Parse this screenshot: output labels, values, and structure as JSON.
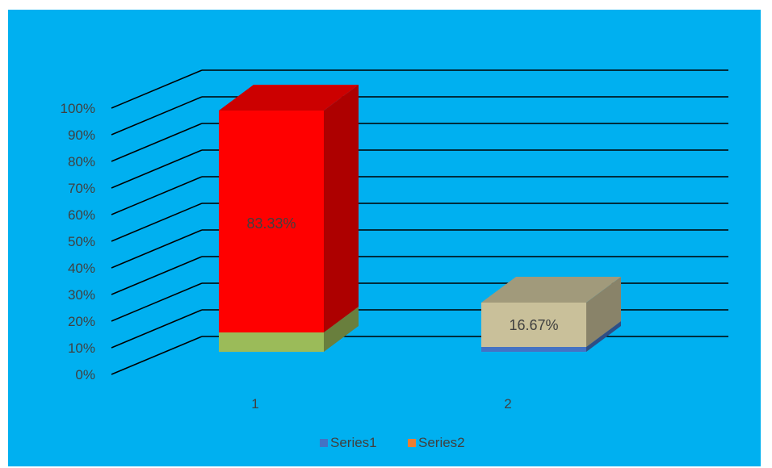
{
  "chart_data": {
    "type": "bar",
    "subtype": "3d-stacked-column",
    "categories": [
      "1",
      "2"
    ],
    "y_ticks": [
      "0%",
      "10%",
      "20%",
      "30%",
      "40%",
      "50%",
      "60%",
      "70%",
      "80%",
      "90%",
      "100%"
    ],
    "ylim": [
      0,
      1
    ],
    "grid": true,
    "legend_position": "bottom",
    "series": [
      {
        "name": "Series1",
        "values": [
          0.0,
          0.0
        ],
        "color": "#4472C4"
      },
      {
        "name": "Series2",
        "values": [
          0.8333,
          0.1667
        ],
        "color": "#ED7D31"
      }
    ],
    "fill_colors": {
      "bar1_base": "#9BBB59",
      "bar1_main": "#FF0000",
      "bar2_base": "#4472C4",
      "bar2_main": "#C9C09A"
    },
    "data_labels": [
      "83.33%",
      "16.67%"
    ],
    "background": "#00B0F0"
  }
}
